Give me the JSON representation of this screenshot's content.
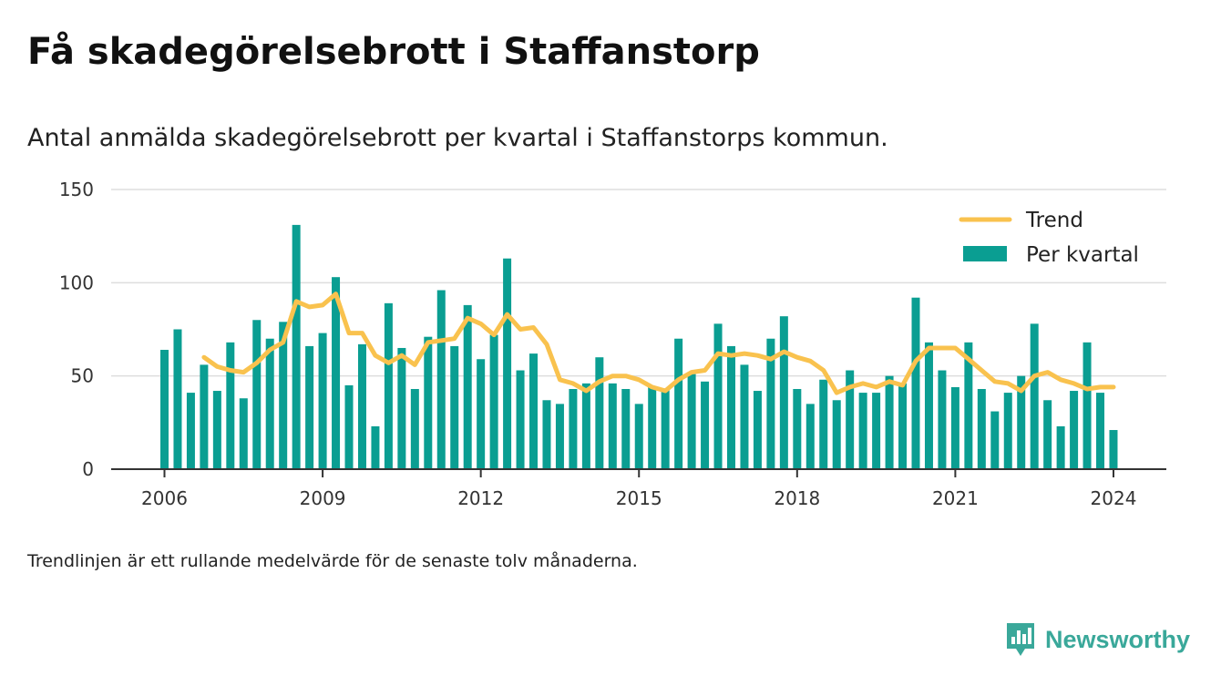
{
  "chart_data": {
    "type": "bar",
    "title": "Få skadegörelsebrott i Staffanstorp",
    "subtitle": "Antal anmälda skadegörelsebrott per kvartal i Staffanstorps kommun.",
    "footnote": "Trendlinjen är ett rullande medelvärde för de senaste tolv månaderna.",
    "x_start_year": 2006,
    "x_ticks": [
      "2006",
      "2009",
      "2012",
      "2015",
      "2018",
      "2021",
      "2024"
    ],
    "y_ticks": [
      "0",
      "50",
      "100",
      "150"
    ],
    "ylim": [
      0,
      150
    ],
    "grid": true,
    "legend_position": "top-right",
    "colors": {
      "bars": "#0a9e92",
      "trend": "#f9c24e",
      "grid": "#dddddd",
      "axis": "#333333"
    },
    "series": [
      {
        "name": "Per kvartal",
        "kind": "bar",
        "values": [
          64,
          75,
          41,
          56,
          42,
          68,
          38,
          80,
          70,
          79,
          131,
          66,
          73,
          103,
          45,
          67,
          23,
          89,
          65,
          43,
          71,
          96,
          66,
          88,
          59,
          72,
          113,
          53,
          62,
          37,
          35,
          43,
          46,
          60,
          46,
          43,
          35,
          44,
          43,
          70,
          51,
          47,
          78,
          66,
          56,
          42,
          70,
          82,
          43,
          35,
          48,
          37,
          53,
          41,
          41,
          50,
          46,
          92,
          68,
          53,
          44,
          68,
          43,
          31,
          41,
          50,
          78,
          37,
          23,
          42,
          68,
          41,
          21
        ]
      },
      {
        "name": "Trend",
        "kind": "line",
        "start_index": 3,
        "values": [
          60,
          55,
          53,
          52,
          57,
          64,
          68,
          90,
          87,
          88,
          94,
          73,
          73,
          61,
          57,
          61,
          56,
          68,
          69,
          70,
          81,
          78,
          72,
          83,
          75,
          76,
          67,
          48,
          46,
          42,
          47,
          50,
          50,
          48,
          44,
          42,
          48,
          52,
          53,
          62,
          61,
          62,
          61,
          59,
          63,
          60,
          58,
          53,
          41,
          44,
          46,
          44,
          47,
          45,
          58,
          65,
          65,
          65,
          59,
          53,
          47,
          46,
          42,
          50,
          52,
          48,
          46,
          43,
          44,
          44
        ]
      }
    ]
  },
  "brand": {
    "name": "Newsworthy",
    "icon": "newsworthy-logo-icon"
  }
}
